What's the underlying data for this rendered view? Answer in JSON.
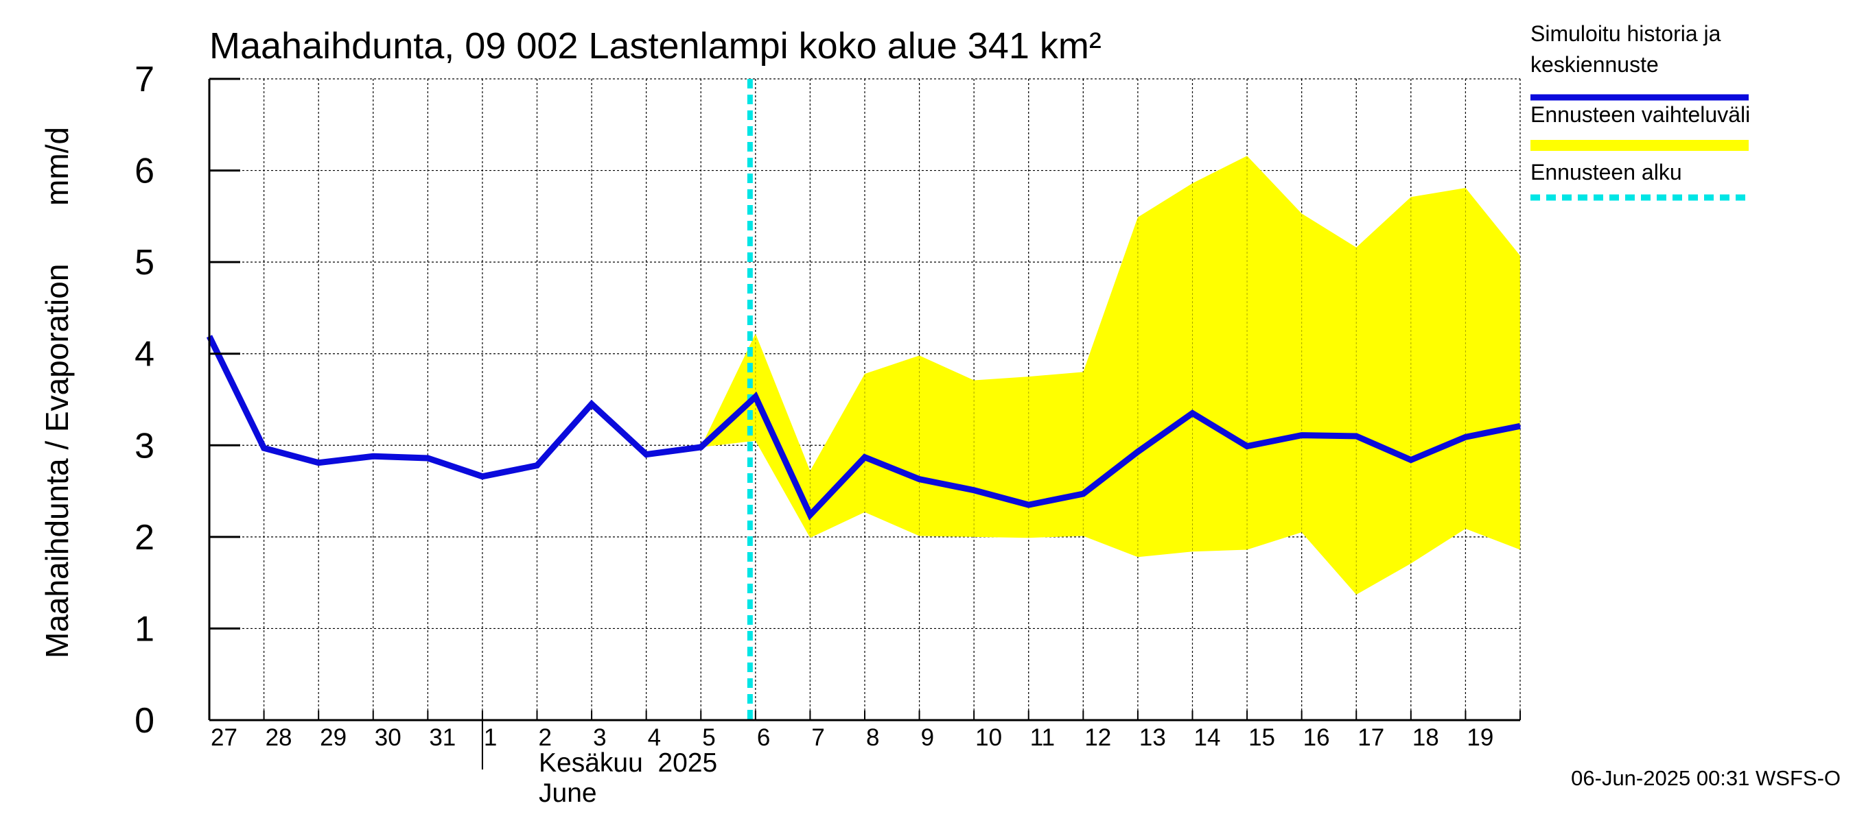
{
  "chart_data": {
    "type": "line",
    "title": "Maahaihdunta, 09 002 Lastenlampi koko alue 341 km²",
    "ylabel_fi": "Maahaihdunta / Evaporation",
    "ylabel_unit": "mm/d",
    "ylim": [
      0,
      7
    ],
    "yticks": [
      "0",
      "1",
      "2",
      "3",
      "4",
      "5",
      "6",
      "7"
    ],
    "grid": true,
    "x_tick_labels": [
      "27",
      "28",
      "29",
      "30",
      "31",
      "1",
      "2",
      "3",
      "4",
      "5",
      "6",
      "7",
      "8",
      "9",
      "10",
      "11",
      "12",
      "13",
      "14",
      "15",
      "16",
      "17",
      "18",
      "19"
    ],
    "month_label_fi": "Kesäkuu  2025",
    "month_label_en": "June",
    "forecast_start_day_index": 9.9,
    "series": [
      {
        "name": "Simuloitu historia ja keskiennuste",
        "color": "#0a0adc",
        "x": [
          0,
          1,
          2,
          3,
          4,
          5,
          6,
          7,
          8,
          9,
          10,
          11,
          12,
          13,
          14,
          15,
          16,
          17,
          18,
          19,
          20,
          21,
          22,
          23,
          24
        ],
        "values": [
          4.19,
          2.97,
          2.81,
          2.88,
          2.86,
          2.66,
          2.78,
          3.45,
          2.9,
          2.98,
          3.53,
          2.24,
          2.87,
          2.63,
          2.51,
          2.35,
          2.47,
          2.93,
          3.35,
          2.99,
          3.11,
          3.1,
          2.84,
          3.09,
          3.21
        ]
      }
    ],
    "band": {
      "name": "Ennusteen vaihteluväli",
      "color": "#ffff00",
      "x": [
        9,
        10,
        11,
        12,
        13,
        14,
        15,
        16,
        17,
        18,
        19,
        20,
        21,
        22,
        23,
        24
      ],
      "upper": [
        2.98,
        4.22,
        2.72,
        3.78,
        3.98,
        3.71,
        3.75,
        3.8,
        5.49,
        5.86,
        6.16,
        5.53,
        5.16,
        5.71,
        5.81,
        5.07
      ],
      "lower": [
        2.98,
        3.05,
        1.99,
        2.27,
        2.01,
        2.0,
        1.99,
        2.01,
        1.78,
        1.84,
        1.86,
        2.05,
        1.37,
        1.71,
        2.09,
        1.86
      ]
    },
    "legend": [
      {
        "label_lines": [
          "Simuloitu historia ja",
          "keskiennuste"
        ],
        "color": "#0a0adc",
        "style": "solid"
      },
      {
        "label_lines": [
          "Ennusteen vaihteluväli"
        ],
        "color": "#ffff00",
        "style": "solid"
      },
      {
        "label_lines": [
          "Ennusteen alku"
        ],
        "color": "#00e5e5",
        "style": "dashed"
      }
    ],
    "legend_position": "right",
    "forecast_start_color": "#00e5e5"
  },
  "footer": "06-Jun-2025 00:31 WSFS-O"
}
